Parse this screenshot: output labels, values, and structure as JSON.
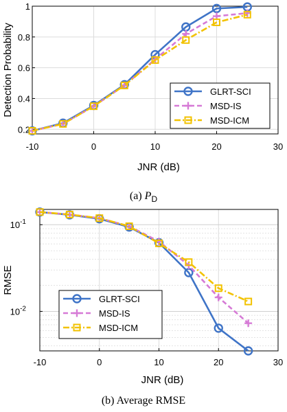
{
  "chart_data": [
    {
      "type": "line",
      "panel": "a",
      "caption_label": "(a)",
      "caption_main": "P",
      "caption_sub": "D",
      "xlabel": "JNR (dB)",
      "ylabel": "Detection Probability",
      "xlim": [
        -10,
        30
      ],
      "ylim": [
        0.17,
        1.0
      ],
      "yscale": "linear",
      "xticks": [
        "-10",
        "0",
        "10",
        "20",
        "30"
      ],
      "xtick_values": [
        -10,
        0,
        10,
        20,
        30
      ],
      "yticks": [
        "0.2",
        "0.4",
        "0.6",
        "0.8",
        "1"
      ],
      "ytick_values": [
        0.2,
        0.4,
        0.6,
        0.8,
        1.0
      ],
      "grid": true,
      "legend_position": "bottom-right",
      "x": [
        -10,
        -5,
        0,
        5,
        10,
        15,
        20,
        25
      ],
      "series": [
        {
          "name": "GLRT-SCI",
          "color": "#3f74c7",
          "marker": "circle",
          "dash": "solid",
          "values": [
            0.19,
            0.24,
            0.355,
            0.49,
            0.685,
            0.865,
            0.985,
            0.995
          ]
        },
        {
          "name": "MSD-IS",
          "color": "#d67ad6",
          "marker": "plus",
          "dash": "dashed",
          "values": [
            0.19,
            0.235,
            0.35,
            0.485,
            0.655,
            0.82,
            0.935,
            0.955
          ]
        },
        {
          "name": "MSD-ICM",
          "color": "#f2c200",
          "marker": "square",
          "dash": "dashdot",
          "values": [
            0.19,
            0.235,
            0.35,
            0.485,
            0.65,
            0.78,
            0.895,
            0.945
          ]
        }
      ]
    },
    {
      "type": "line",
      "panel": "b",
      "caption_label": "(b)",
      "caption_main": "Average RMSE",
      "xlabel": "JNR (dB)",
      "ylabel": "RMSE",
      "xlim": [
        -10,
        30
      ],
      "ylim": [
        0.0035,
        0.15
      ],
      "yscale": "log",
      "xticks": [
        "-10",
        "0",
        "10",
        "20",
        "30"
      ],
      "xtick_values": [
        -10,
        0,
        10,
        20,
        30
      ],
      "yticks_base": [
        "10",
        "10"
      ],
      "yticks_exp": [
        "-1",
        "-2"
      ],
      "ytick_values": [
        0.1,
        0.01
      ],
      "grid": true,
      "legend_position": "bottom-left",
      "x": [
        -10,
        -5,
        0,
        5,
        10,
        15,
        20,
        25
      ],
      "series": [
        {
          "name": "GLRT-SCI",
          "color": "#3f74c7",
          "marker": "circle",
          "dash": "solid",
          "values": [
            0.14,
            0.13,
            0.117,
            0.094,
            0.062,
            0.028,
            0.0064,
            0.0035
          ]
        },
        {
          "name": "MSD-IS",
          "color": "#d67ad6",
          "marker": "plus",
          "dash": "dashed",
          "values": [
            0.14,
            0.131,
            0.119,
            0.096,
            0.064,
            0.034,
            0.0145,
            0.0073
          ]
        },
        {
          "name": "MSD-ICM",
          "color": "#f2c200",
          "marker": "square",
          "dash": "dashdot",
          "values": [
            0.14,
            0.131,
            0.119,
            0.096,
            0.061,
            0.037,
            0.0185,
            0.013
          ]
        }
      ]
    }
  ]
}
